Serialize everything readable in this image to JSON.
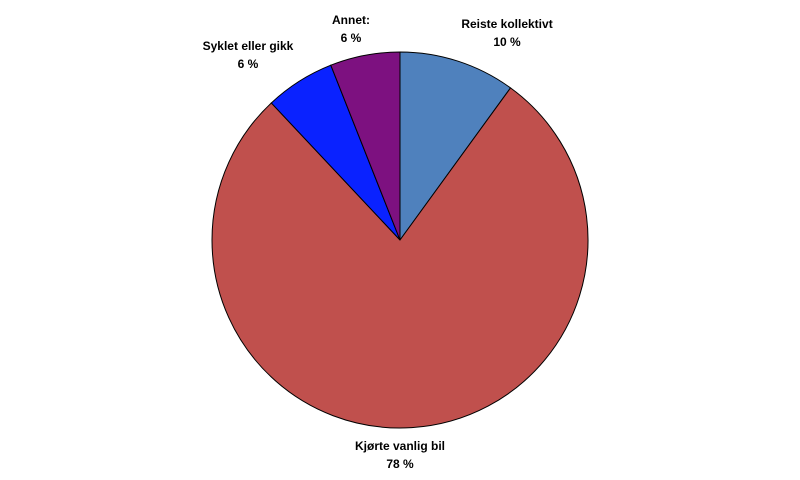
{
  "chart_data": {
    "type": "pie",
    "start_angle_deg": 0,
    "direction": "clockwise",
    "slices": [
      {
        "label": "Reiste kollektivt",
        "value_label": "10 %",
        "value": 10,
        "color": "#4F81BD"
      },
      {
        "label": "Kjørte vanlig bil",
        "value_label": "78 %",
        "value": 78,
        "color": "#C0504D"
      },
      {
        "label": "Syklet eller gikk",
        "value_label": "6 %",
        "value": 6,
        "color": "#0A22FF"
      },
      {
        "label": "Annet:",
        "value_label": "6 %",
        "value": 6,
        "color": "#7D1180"
      }
    ]
  }
}
